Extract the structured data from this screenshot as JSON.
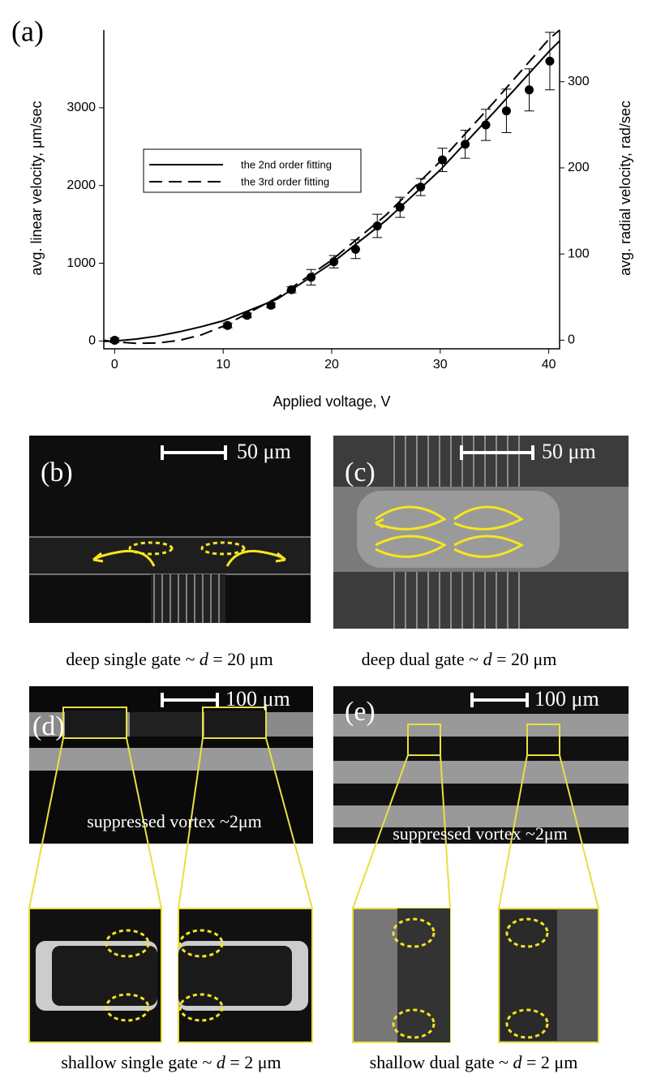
{
  "chart_data": {
    "type": "scatter",
    "panel_label": "(a)",
    "xlabel": "Applied voltage, V",
    "ylabel": "avg. linear velocity, μm/sec",
    "y2label": "avg. radial velocity, rad/sec",
    "xlim": [
      -1,
      41
    ],
    "xticks": [
      0,
      10,
      20,
      30,
      40
    ],
    "ylim": [
      -100,
      4000
    ],
    "yticks": [
      0,
      1000,
      2000,
      3000
    ],
    "y2lim": [
      -10,
      360
    ],
    "y2ticks": [
      0,
      100,
      200,
      300
    ],
    "color": "#000000",
    "legend": "upper left",
    "points": {
      "x": [
        0,
        10.4,
        12.2,
        14.4,
        16.3,
        18.1,
        20.2,
        22.2,
        24.2,
        26.3,
        28.2,
        30.2,
        32.3,
        34.2,
        36.1,
        38.2,
        40.1
      ],
      "values": [
        10,
        200,
        330,
        460,
        660,
        820,
        1020,
        1180,
        1480,
        1720,
        1980,
        2330,
        2530,
        2780,
        2960,
        3230,
        3600
      ],
      "errors": [
        30,
        30,
        30,
        30,
        40,
        100,
        80,
        120,
        150,
        130,
        110,
        150,
        180,
        200,
        280,
        270,
        370
      ]
    },
    "fits": [
      {
        "name": "the 2nd order fitting",
        "style": "solid",
        "x": [
          -1,
          0,
          2,
          4,
          6,
          8,
          10,
          15,
          20,
          25,
          30,
          35,
          40,
          41
        ],
        "values": [
          -5,
          0,
          25,
          65,
          120,
          185,
          260,
          540,
          1000,
          1550,
          2200,
          2950,
          3720,
          3860
        ]
      },
      {
        "name": "the 3rd order fitting",
        "style": "dashed",
        "x": [
          -1,
          0,
          2,
          4,
          6,
          8,
          10,
          15,
          20,
          25,
          30,
          35,
          40,
          41
        ],
        "values": [
          10,
          -10,
          -30,
          -25,
          10,
          80,
          190,
          560,
          1040,
          1620,
          2310,
          3080,
          3880,
          4000
        ]
      }
    ]
  },
  "panels": [
    {
      "label": "(b)",
      "scale": "50 μm",
      "caption": [
        "deep single gate ~ ",
        "d",
        " = 20 μm"
      ]
    },
    {
      "label": "(c)",
      "scale": "50 μm",
      "caption": [
        "deep dual gate ~ ",
        "d",
        " = 20 μm"
      ]
    },
    {
      "label": "(d)",
      "scale": "100 μm",
      "overlay": "suppressed vortex ~2μm",
      "caption": [
        "shallow single gate ~ ",
        "d",
        " = 2 μm"
      ]
    },
    {
      "label": "(e)",
      "scale": "100 μm",
      "overlay": "suppressed vortex ~2μm",
      "caption": [
        "shallow dual gate ~ ",
        "d",
        " = 2 μm"
      ]
    }
  ]
}
